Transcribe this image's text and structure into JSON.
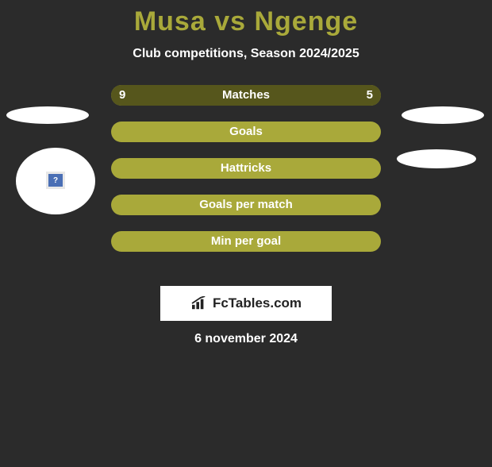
{
  "title": {
    "text": "Musa vs Ngenge",
    "color": "#a9a93a",
    "fontsize": 34
  },
  "subtitle": "Club competitions, Season 2024/2025",
  "colors": {
    "background": "#2b2b2b",
    "track": "#a9a93a",
    "fill": "#56561c",
    "text": "#ffffff",
    "ellipse": "#ffffff"
  },
  "bars": {
    "track_width": 340,
    "track_height": 26,
    "rows": [
      {
        "label": "Matches",
        "left_val": "9",
        "right_val": "5",
        "left_pct": 64,
        "right_pct": 36,
        "show_values": true
      },
      {
        "label": "Goals",
        "left_val": "",
        "right_val": "",
        "left_pct": 0,
        "right_pct": 0,
        "show_values": false
      },
      {
        "label": "Hattricks",
        "left_val": "",
        "right_val": "",
        "left_pct": 0,
        "right_pct": 0,
        "show_values": false
      },
      {
        "label": "Goals per match",
        "left_val": "",
        "right_val": "",
        "left_pct": 0,
        "right_pct": 0,
        "show_values": false
      },
      {
        "label": "Min per goal",
        "left_val": "",
        "right_val": "",
        "left_pct": 0,
        "right_pct": 0,
        "show_values": false
      }
    ]
  },
  "logo": {
    "icon_name": "chart-icon",
    "text": "FcTables.com",
    "bg": "#ffffff",
    "text_color": "#222222"
  },
  "date": "6 november 2024",
  "flag_glyph": "?"
}
